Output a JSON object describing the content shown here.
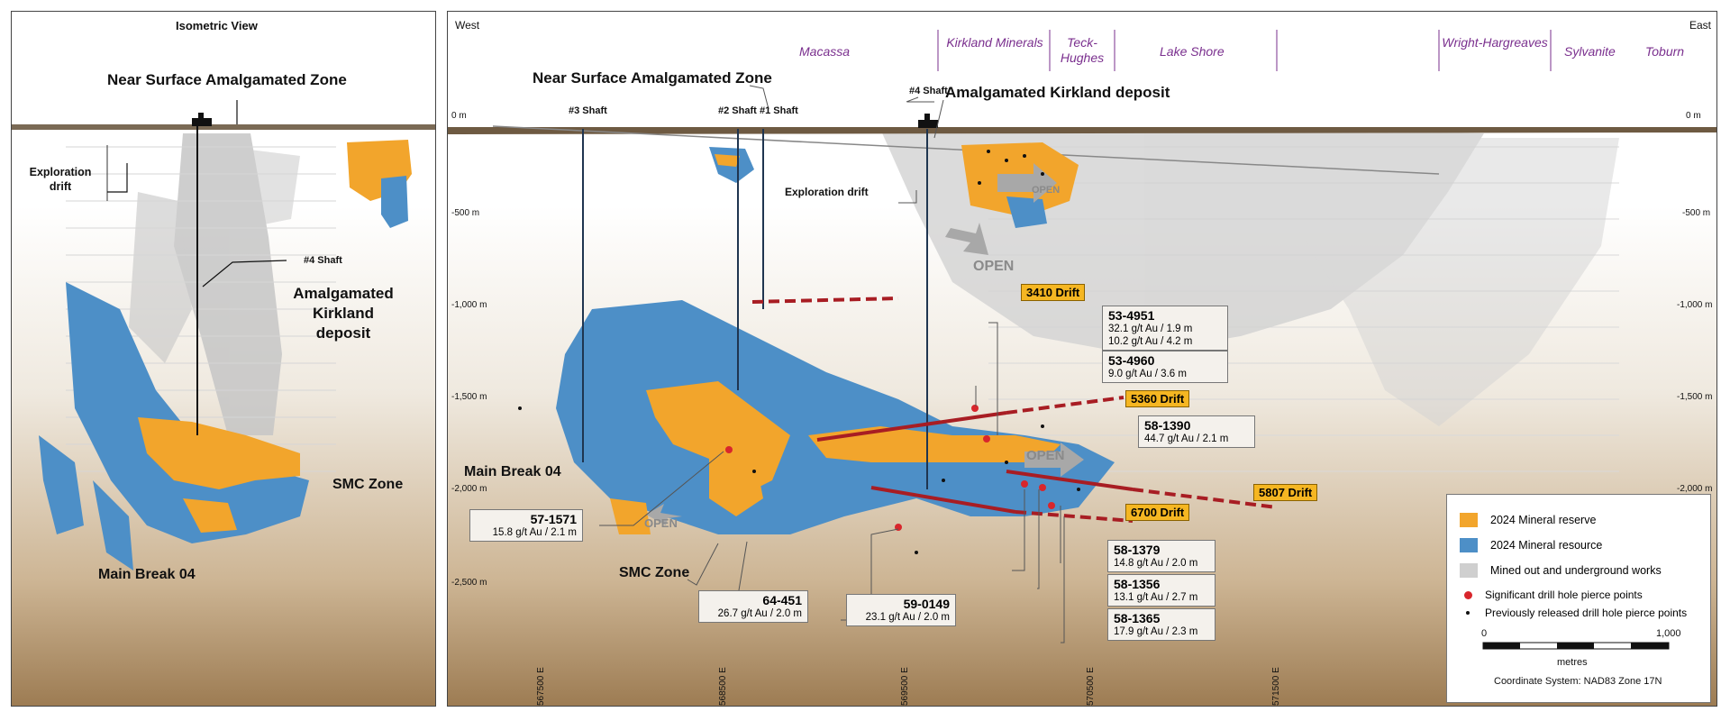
{
  "left": {
    "title": "Isometric View",
    "near_surface": "Near Surface Amalgamated Zone",
    "exploration_drift": "Exploration drift",
    "shaft4": "#4 Shaft",
    "amalgamated": "Amalgamated Kirkland deposit",
    "smc": "SMC Zone",
    "main_break": "Main Break 04"
  },
  "right": {
    "west": "West",
    "east": "East",
    "properties": [
      "Macassa",
      "Kirkland Minerals",
      "Teck-Hughes",
      "Lake Shore",
      "Wright-Hargreaves",
      "Sylvanite",
      "Toburn"
    ],
    "near_surface": "Near Surface Amalgamated Zone",
    "amalgamated": "Amalgamated Kirkland deposit",
    "shafts": [
      "#3 Shaft",
      "#2 Shaft",
      "#1 Shaft",
      "#4 Shaft"
    ],
    "exploration_drift": "Exploration drift",
    "main_break": "Main Break 04",
    "smc": "SMC Zone",
    "open": "OPEN",
    "depths_left": [
      "0 m",
      "-500 m",
      "-1,000 m",
      "-1,500 m",
      "-2,000 m",
      "-2,500 m"
    ],
    "depths_right": [
      "0 m",
      "-500 m",
      "-1,000 m",
      "-1,500 m",
      "-2,000 m"
    ],
    "eastings": [
      "567500 E",
      "568500 E",
      "569500 E",
      "570500 E",
      "571500 E"
    ],
    "drifts": [
      "3410 Drift",
      "5360 Drift",
      "5807 Drift",
      "6700 Drift"
    ],
    "callouts": [
      {
        "id": "53-4951",
        "values": [
          "32.1 g/t Au / 1.9 m",
          "10.2 g/t Au / 4.2 m"
        ]
      },
      {
        "id": "53-4960",
        "values": [
          "9.0 g/t Au / 3.6 m"
        ]
      },
      {
        "id": "58-1390",
        "values": [
          "44.7 g/t Au / 2.1 m"
        ]
      },
      {
        "id": "57-1571",
        "values": [
          "15.8 g/t Au / 2.1 m"
        ]
      },
      {
        "id": "58-1379",
        "values": [
          "14.8 g/t Au / 2.0 m"
        ]
      },
      {
        "id": "58-1356",
        "values": [
          "13.1 g/t Au / 2.7 m"
        ]
      },
      {
        "id": "58-1365",
        "values": [
          "17.9 g/t Au / 2.3 m"
        ]
      },
      {
        "id": "64-451",
        "values": [
          "26.7 g/t Au / 2.0 m"
        ]
      },
      {
        "id": "59-0149",
        "values": [
          "23.1 g/t Au / 2.0 m"
        ]
      }
    ]
  },
  "legend": {
    "reserve": "2024 Mineral reserve",
    "resource": "2024 Mineral resource",
    "mined": "Mined out and underground works",
    "significant": "Significant drill hole pierce points",
    "previous": "Previously released drill hole pierce points",
    "scale_start": "0",
    "scale_end": "1,000",
    "scale_unit": "metres",
    "coords": "Coordinate System: NAD83 Zone 17N"
  },
  "colors": {
    "reserve": "#f2a52c",
    "resource": "#4d8fc7",
    "mined": "#cfcfcf",
    "significant": "#d8262c",
    "drift": "#a81d23"
  }
}
